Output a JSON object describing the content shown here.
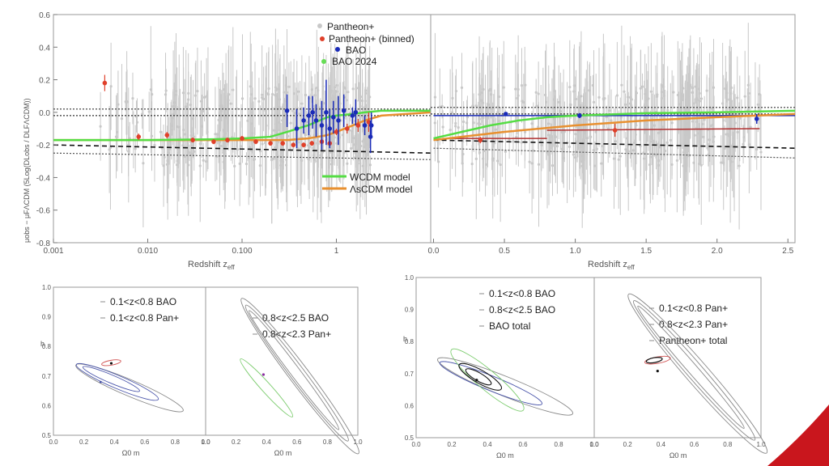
{
  "colors": {
    "pantheon": "#c8c8c8",
    "pantheon_binned": "#e0402a",
    "bao": "#1a2bb8",
    "bao2024": "#66dd55",
    "wcdm": "#55dd44",
    "lcdm": "#e89030",
    "red_dark": "#b03030",
    "contour_blue": "#4a55aa",
    "contour_green": "#7ccc6e",
    "contour_red": "#d05050",
    "contour_grey": "#888888",
    "accent": "#c9161d"
  },
  "chart_data": [
    {
      "id": "top-left",
      "type": "scatter",
      "xscale": "log",
      "xlim": [
        0.001,
        10
      ],
      "ylim": [
        -0.8,
        0.6
      ],
      "xticks": [
        "0.001",
        "0.010",
        "0.100",
        "1"
      ],
      "xtick_values": [
        0.001,
        0.01,
        0.1,
        1
      ],
      "yticks": [
        "0.6",
        "0.4",
        "0.2",
        "0.0",
        "-0.2",
        "-0.4",
        "-0.6",
        "-0.8"
      ],
      "ytick_values": [
        0.6,
        0.4,
        0.2,
        0.0,
        -0.2,
        -0.4,
        -0.6,
        -0.8
      ],
      "xlabel": "Redshift z",
      "xlabel_sub": "eff",
      "ylabel": "μobs − μFΛCDM (5Log(DLobs / DLFΛCDM))",
      "legend": [
        "Pantheon+",
        "Pantheon+ (binned)",
        "BAO",
        "BAO 2024"
      ],
      "legend2": [
        "WCDM model",
        "ΛsCDM model"
      ],
      "binned": {
        "x": [
          0.0035,
          0.008,
          0.016,
          0.03,
          0.05,
          0.07,
          0.1,
          0.14,
          0.2,
          0.27,
          0.35,
          0.45,
          0.55,
          0.7,
          0.85,
          1.0,
          1.3,
          1.7,
          2.2
        ],
        "y": [
          0.18,
          -0.15,
          -0.14,
          -0.17,
          -0.18,
          -0.17,
          -0.16,
          -0.18,
          -0.19,
          -0.19,
          -0.2,
          -0.2,
          -0.19,
          -0.18,
          -0.19,
          -0.12,
          -0.1,
          -0.08,
          -0.06
        ],
        "err": [
          0.05,
          0.02,
          0.02,
          0.015,
          0.015,
          0.015,
          0.015,
          0.015,
          0.015,
          0.015,
          0.015,
          0.015,
          0.015,
          0.02,
          0.02,
          0.02,
          0.03,
          0.04,
          0.06
        ]
      },
      "bao": {
        "x": [
          0.3,
          0.38,
          0.45,
          0.51,
          0.56,
          0.61,
          0.7,
          0.78,
          0.85,
          0.93,
          1.05,
          1.2,
          1.48,
          1.6,
          2.0,
          2.3,
          2.35
        ],
        "y": [
          0.01,
          -0.1,
          -0.05,
          -0.02,
          0.0,
          -0.05,
          -0.08,
          0.0,
          -0.1,
          -0.03,
          -0.05,
          0.01,
          -0.02,
          0.0,
          -0.08,
          -0.15,
          -0.08
        ],
        "err": [
          0.1,
          0.12,
          0.08,
          0.12,
          0.1,
          0.1,
          0.15,
          0.2,
          0.12,
          0.1,
          0.15,
          0.1,
          0.05,
          0.08,
          0.06,
          0.1,
          0.08
        ]
      },
      "wcdm": {
        "x": [
          0.001,
          0.01,
          0.05,
          0.1,
          0.2,
          0.3,
          0.5,
          0.8,
          1.0,
          1.5,
          2.0,
          3.0,
          10
        ],
        "y": [
          -0.17,
          -0.17,
          -0.165,
          -0.16,
          -0.15,
          -0.12,
          -0.08,
          -0.03,
          -0.02,
          -0.01,
          0.0,
          0.01,
          0.01
        ]
      },
      "lcdm": {
        "x": [
          0.001,
          0.01,
          0.1,
          0.3,
          0.5,
          0.8,
          1.0,
          1.5,
          2.0,
          3.0,
          10
        ],
        "y": [
          -0.17,
          -0.17,
          -0.17,
          -0.17,
          -0.16,
          -0.14,
          -0.12,
          -0.08,
          -0.05,
          -0.02,
          0.0
        ]
      },
      "dotted_top": [
        0.02,
        -0.02
      ],
      "dashed_black": {
        "x": [
          0.001,
          10
        ],
        "y": [
          -0.2,
          -0.25
        ]
      },
      "dotted_lower": {
        "x": [
          0.001,
          10
        ],
        "y": [
          -0.25,
          -0.29
        ]
      }
    },
    {
      "id": "top-right",
      "type": "scatter",
      "xlim": [
        -0.02,
        2.55
      ],
      "ylim": [
        -0.8,
        0.6
      ],
      "xticks": [
        "0.0",
        "0.5",
        "1.0",
        "1.5",
        "2.0",
        "2.5"
      ],
      "xtick_values": [
        0.0,
        0.5,
        1.0,
        1.5,
        2.0,
        2.5
      ],
      "xlabel": "Redshift z",
      "xlabel_sub": "eff",
      "binned": {
        "x": [
          0.33,
          1.28
        ],
        "y": [
          -0.17,
          -0.11
        ],
        "err": [
          0.02,
          0.04
        ]
      },
      "bao": {
        "x": [
          0.51,
          1.03,
          2.28
        ],
        "y": [
          -0.01,
          -0.02,
          -0.04
        ],
        "err": [
          0.01,
          0.015,
          0.03
        ]
      },
      "wcdm": {
        "x": [
          0.0,
          0.2,
          0.4,
          0.6,
          0.8,
          1.0,
          1.5,
          2.0,
          2.55
        ],
        "y": [
          -0.16,
          -0.12,
          -0.08,
          -0.05,
          -0.03,
          -0.02,
          -0.005,
          0.0,
          0.01
        ]
      },
      "lcdm": {
        "x": [
          0.0,
          0.5,
          1.0,
          1.5,
          2.0,
          2.55
        ],
        "y": [
          -0.17,
          -0.12,
          -0.08,
          -0.05,
          -0.03,
          -0.01
        ]
      },
      "red_lines": [
        {
          "x": [
            0.1,
            0.8
          ],
          "y": [
            -0.16,
            -0.16
          ]
        },
        {
          "x": [
            0.8,
            2.3
          ],
          "y": [
            -0.11,
            -0.1
          ]
        }
      ],
      "blue_line": {
        "x": [
          0.0,
          2.55
        ],
        "y": [
          -0.02,
          -0.02
        ]
      },
      "dotted_top": [
        0.03,
        -0.01
      ],
      "dashed_black": {
        "x": [
          0.0,
          2.55
        ],
        "y": [
          -0.17,
          -0.22
        ]
      },
      "dotted_lower": {
        "x": [
          0.0,
          2.55
        ],
        "y": [
          -0.22,
          -0.28
        ]
      }
    },
    {
      "id": "bottom-left-a",
      "type": "contour",
      "xlim": [
        0,
        1
      ],
      "ylim": [
        0.5,
        1
      ],
      "xticks": [
        "0.0",
        "0.2",
        "0.4",
        "0.6",
        "0.8",
        "1.0"
      ],
      "yticks": [
        "1.0",
        "0.9",
        "0.8",
        "0.7",
        "0.6",
        "0.5"
      ],
      "xlabel": "Ω0 m",
      "ylabel": "h",
      "legend": [
        "0.1<z<0.8 BAO",
        "0.1<z<0.8 Pan+"
      ]
    },
    {
      "id": "bottom-left-b",
      "type": "contour",
      "xlim": [
        0,
        1
      ],
      "ylim": [
        0.5,
        1
      ],
      "xticks": [
        "0.0",
        "0.2",
        "0.4",
        "0.6",
        "0.8",
        "1.0"
      ],
      "xlabel": "Ω0 m",
      "legend": [
        "0.8<z<2.5 BAO",
        "0.8<z<2.3 Pan+"
      ]
    },
    {
      "id": "bottom-right-a",
      "type": "contour",
      "xlim": [
        0,
        1
      ],
      "ylim": [
        0.5,
        1
      ],
      "xticks": [
        "0.0",
        "0.2",
        "0.4",
        "0.6",
        "0.8",
        "1.0"
      ],
      "yticks": [
        "1.0",
        "0.9",
        "0.8",
        "0.7",
        "0.6",
        "0.5"
      ],
      "xlabel": "Ω0 m",
      "ylabel": "h",
      "legend": [
        "0.1<z<0.8 BAO",
        "0.8<z<2.5 BAO",
        "BAO total"
      ]
    },
    {
      "id": "bottom-right-b",
      "type": "contour",
      "xlim": [
        0,
        1
      ],
      "ylim": [
        0.5,
        1
      ],
      "xticks": [
        "0.0",
        "0.2",
        "0.4",
        "0.6",
        "0.8",
        "1.0"
      ],
      "xlabel": "Ω0 m",
      "legend": [
        "0.1<z<0.8 Pan+",
        "0.8<z<2.3 Pan+",
        "Pantheon+ total"
      ]
    }
  ]
}
